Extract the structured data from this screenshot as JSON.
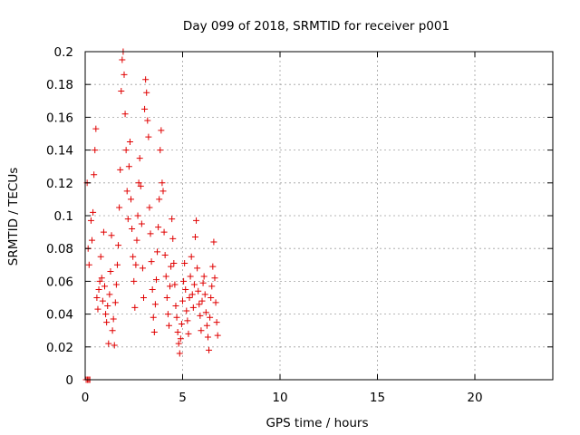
{
  "chart_data": {
    "type": "scatter",
    "title": "Day 099 of 2018, SRMTID for receiver p001",
    "xlabel": "GPS time / hours",
    "ylabel": "SRMTID / TECUs",
    "xlim": [
      0,
      24
    ],
    "ylim": [
      0,
      0.2
    ],
    "xticks": [
      0,
      5,
      10,
      15,
      20
    ],
    "xtick_labels": [
      "0",
      "5",
      "10",
      "15",
      "20"
    ],
    "yticks": [
      0,
      0.02,
      0.04,
      0.06,
      0.08,
      0.1,
      0.12,
      0.14,
      0.16,
      0.18,
      0.2
    ],
    "ytick_labels": [
      "0",
      "0.02",
      "0.04",
      "0.06",
      "0.08",
      "0.1",
      "0.12",
      "0.14",
      "0.16",
      "0.18",
      "0.2"
    ],
    "grid": true,
    "marker": "+",
    "color": "#e00000",
    "series": [
      {
        "name": "SRMTID",
        "points": [
          [
            0.05,
            0.0
          ],
          [
            0.12,
            0.0
          ],
          [
            0.18,
            0.0
          ],
          [
            0.24,
            0.0
          ],
          [
            0.1,
            0.12
          ],
          [
            0.15,
            0.08
          ],
          [
            0.2,
            0.07
          ],
          [
            0.3,
            0.097
          ],
          [
            0.35,
            0.085
          ],
          [
            0.4,
            0.102
          ],
          [
            0.45,
            0.125
          ],
          [
            0.5,
            0.14
          ],
          [
            0.55,
            0.153
          ],
          [
            0.6,
            0.05
          ],
          [
            0.65,
            0.043
          ],
          [
            0.7,
            0.055
          ],
          [
            0.75,
            0.06
          ],
          [
            0.8,
            0.075
          ],
          [
            0.85,
            0.062
          ],
          [
            0.9,
            0.048
          ],
          [
            0.95,
            0.09
          ],
          [
            1.0,
            0.057
          ],
          [
            1.05,
            0.04
          ],
          [
            1.1,
            0.035
          ],
          [
            1.15,
            0.045
          ],
          [
            1.2,
            0.022
          ],
          [
            1.25,
            0.052
          ],
          [
            1.3,
            0.066
          ],
          [
            1.35,
            0.088
          ],
          [
            1.4,
            0.03
          ],
          [
            1.45,
            0.037
          ],
          [
            1.5,
            0.021
          ],
          [
            1.55,
            0.047
          ],
          [
            1.6,
            0.058
          ],
          [
            1.65,
            0.07
          ],
          [
            1.7,
            0.082
          ],
          [
            1.75,
            0.105
          ],
          [
            1.8,
            0.128
          ],
          [
            1.85,
            0.176
          ],
          [
            1.9,
            0.195
          ],
          [
            1.95,
            0.2
          ],
          [
            2.0,
            0.186
          ],
          [
            2.05,
            0.162
          ],
          [
            2.1,
            0.14
          ],
          [
            2.15,
            0.115
          ],
          [
            2.2,
            0.098
          ],
          [
            2.25,
            0.13
          ],
          [
            2.3,
            0.145
          ],
          [
            2.35,
            0.11
          ],
          [
            2.4,
            0.092
          ],
          [
            2.45,
            0.075
          ],
          [
            2.5,
            0.06
          ],
          [
            2.55,
            0.044
          ],
          [
            2.6,
            0.07
          ],
          [
            2.65,
            0.085
          ],
          [
            2.7,
            0.1
          ],
          [
            2.75,
            0.12
          ],
          [
            2.8,
            0.135
          ],
          [
            2.85,
            0.118
          ],
          [
            2.9,
            0.095
          ],
          [
            2.95,
            0.068
          ],
          [
            3.0,
            0.05
          ],
          [
            3.05,
            0.165
          ],
          [
            3.1,
            0.183
          ],
          [
            3.15,
            0.175
          ],
          [
            3.2,
            0.158
          ],
          [
            3.25,
            0.148
          ],
          [
            3.3,
            0.105
          ],
          [
            3.35,
            0.089
          ],
          [
            3.4,
            0.072
          ],
          [
            3.45,
            0.055
          ],
          [
            3.5,
            0.038
          ],
          [
            3.55,
            0.029
          ],
          [
            3.6,
            0.046
          ],
          [
            3.65,
            0.061
          ],
          [
            3.7,
            0.078
          ],
          [
            3.75,
            0.093
          ],
          [
            3.8,
            0.11
          ],
          [
            3.85,
            0.14
          ],
          [
            3.9,
            0.152
          ],
          [
            3.95,
            0.12
          ],
          [
            4.0,
            0.115
          ],
          [
            4.05,
            0.09
          ],
          [
            4.1,
            0.076
          ],
          [
            4.15,
            0.063
          ],
          [
            4.2,
            0.05
          ],
          [
            4.25,
            0.04
          ],
          [
            4.3,
            0.033
          ],
          [
            4.35,
            0.057
          ],
          [
            4.4,
            0.069
          ],
          [
            4.45,
            0.098
          ],
          [
            4.5,
            0.086
          ],
          [
            4.55,
            0.071
          ],
          [
            4.6,
            0.058
          ],
          [
            4.65,
            0.045
          ],
          [
            4.7,
            0.038
          ],
          [
            4.75,
            0.029
          ],
          [
            4.8,
            0.022
          ],
          [
            4.85,
            0.016
          ],
          [
            4.9,
            0.025
          ],
          [
            4.95,
            0.034
          ],
          [
            5.0,
            0.048
          ],
          [
            5.05,
            0.06
          ],
          [
            5.1,
            0.071
          ],
          [
            5.15,
            0.055
          ],
          [
            5.2,
            0.042
          ],
          [
            5.25,
            0.036
          ],
          [
            5.3,
            0.028
          ],
          [
            5.35,
            0.05
          ],
          [
            5.4,
            0.063
          ],
          [
            5.45,
            0.075
          ],
          [
            5.5,
            0.052
          ],
          [
            5.55,
            0.044
          ],
          [
            5.6,
            0.058
          ],
          [
            5.65,
            0.087
          ],
          [
            5.7,
            0.097
          ],
          [
            5.75,
            0.068
          ],
          [
            5.8,
            0.054
          ],
          [
            5.85,
            0.046
          ],
          [
            5.9,
            0.039
          ],
          [
            5.95,
            0.03
          ],
          [
            6.0,
            0.048
          ],
          [
            6.05,
            0.059
          ],
          [
            6.1,
            0.063
          ],
          [
            6.15,
            0.052
          ],
          [
            6.2,
            0.041
          ],
          [
            6.25,
            0.033
          ],
          [
            6.3,
            0.026
          ],
          [
            6.35,
            0.018
          ],
          [
            6.4,
            0.038
          ],
          [
            6.45,
            0.05
          ],
          [
            6.5,
            0.057
          ],
          [
            6.55,
            0.069
          ],
          [
            6.6,
            0.084
          ],
          [
            6.65,
            0.062
          ],
          [
            6.7,
            0.047
          ],
          [
            6.75,
            0.035
          ],
          [
            6.8,
            0.027
          ]
        ]
      }
    ]
  }
}
